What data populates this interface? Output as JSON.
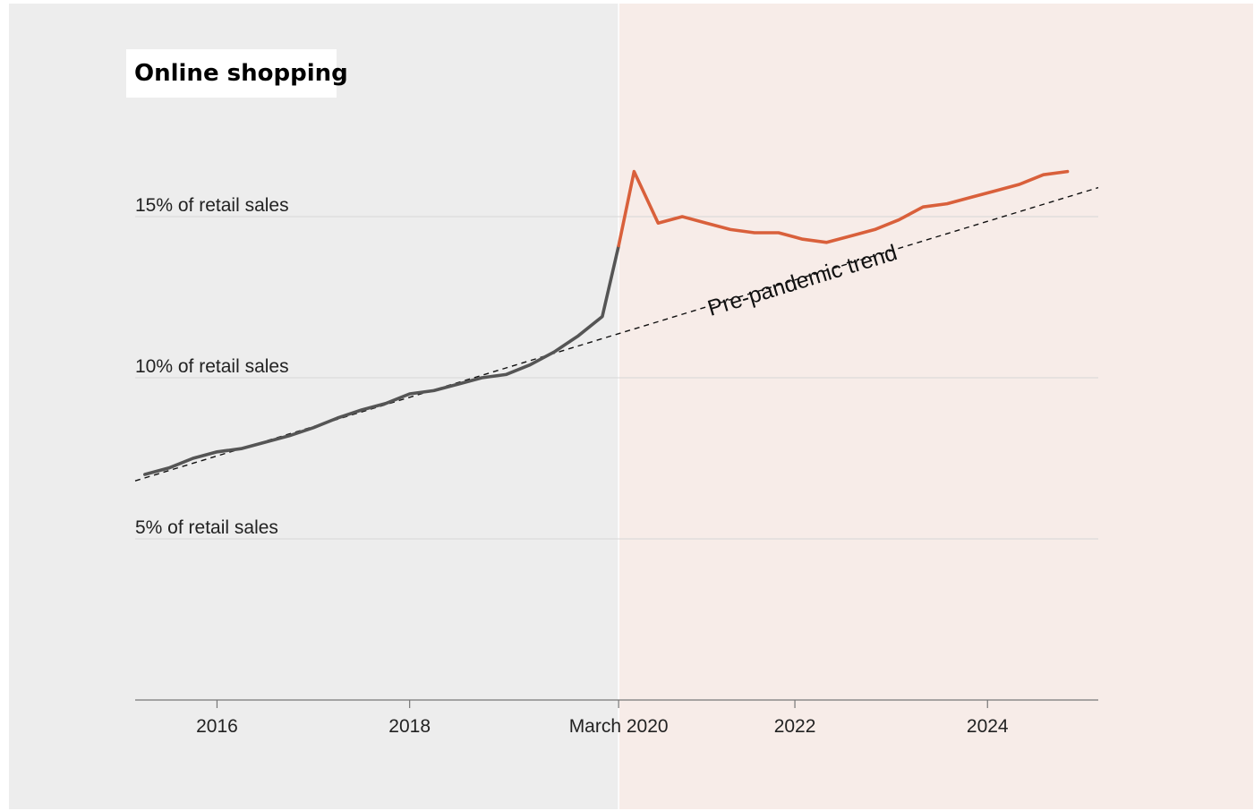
{
  "chart_data": {
    "type": "line",
    "title": "Online shopping",
    "xlabel": "",
    "ylabel": "",
    "xlim": [
      2015.15,
      2025.15
    ],
    "ylim": [
      0,
      15
    ],
    "y_ticks": [
      {
        "value": 5,
        "label": "5% of retail sales"
      },
      {
        "value": 10,
        "label": "10% of retail sales"
      },
      {
        "value": 15,
        "label": "15% of retail sales"
      }
    ],
    "x_ticks": [
      {
        "value": 2016,
        "label": "2016"
      },
      {
        "value": 2018,
        "label": "2018"
      },
      {
        "value": 2020.17,
        "label": "March 2020"
      },
      {
        "value": 2022,
        "label": "2022"
      },
      {
        "value": 2024,
        "label": "2024"
      }
    ],
    "grid": "horizontal",
    "background_regions": [
      {
        "from": 2015.15,
        "to": 2020.17,
        "color": "#ededed"
      },
      {
        "from": 2020.17,
        "to": 2025.15,
        "color": "#f7ece8"
      }
    ],
    "series": [
      {
        "color": "#555555",
        "x": [
          2015.25,
          2015.5,
          2015.75,
          2016.0,
          2016.25,
          2016.5,
          2016.75,
          2017.0,
          2017.25,
          2017.5,
          2017.75,
          2018.0,
          2018.25,
          2018.5,
          2018.75,
          2019.0,
          2019.25,
          2019.5,
          2019.75,
          2020.0,
          2020.17
        ],
        "y": [
          7.0,
          7.2,
          7.5,
          7.7,
          7.8,
          8.0,
          8.2,
          8.45,
          8.75,
          9.0,
          9.2,
          9.5,
          9.6,
          9.8,
          10.0,
          10.1,
          10.4,
          10.8,
          11.3,
          11.9,
          14.1
        ]
      },
      {
        "color": "#d9603b",
        "x": [
          2020.17,
          2020.33,
          2020.58,
          2020.83,
          2021.08,
          2021.33,
          2021.58,
          2021.83,
          2022.08,
          2022.33,
          2022.58,
          2022.83,
          2023.08,
          2023.33,
          2023.58,
          2023.83,
          2024.08,
          2024.33,
          2024.58,
          2024.83
        ],
        "y": [
          14.1,
          16.4,
          14.8,
          15.0,
          14.8,
          14.6,
          14.5,
          14.5,
          14.3,
          14.2,
          14.4,
          14.6,
          14.9,
          15.3,
          15.4,
          15.6,
          15.8,
          16.0,
          16.3,
          16.4
        ]
      }
    ],
    "trend": {
      "x": [
        2015.15,
        2025.15
      ],
      "y": [
        6.8,
        15.9
      ],
      "style": "dashed",
      "color": "#111111"
    },
    "annotations": [
      {
        "text": "Pre-pandemic trend",
        "x": 2022.1,
        "y": 12.8
      }
    ]
  }
}
